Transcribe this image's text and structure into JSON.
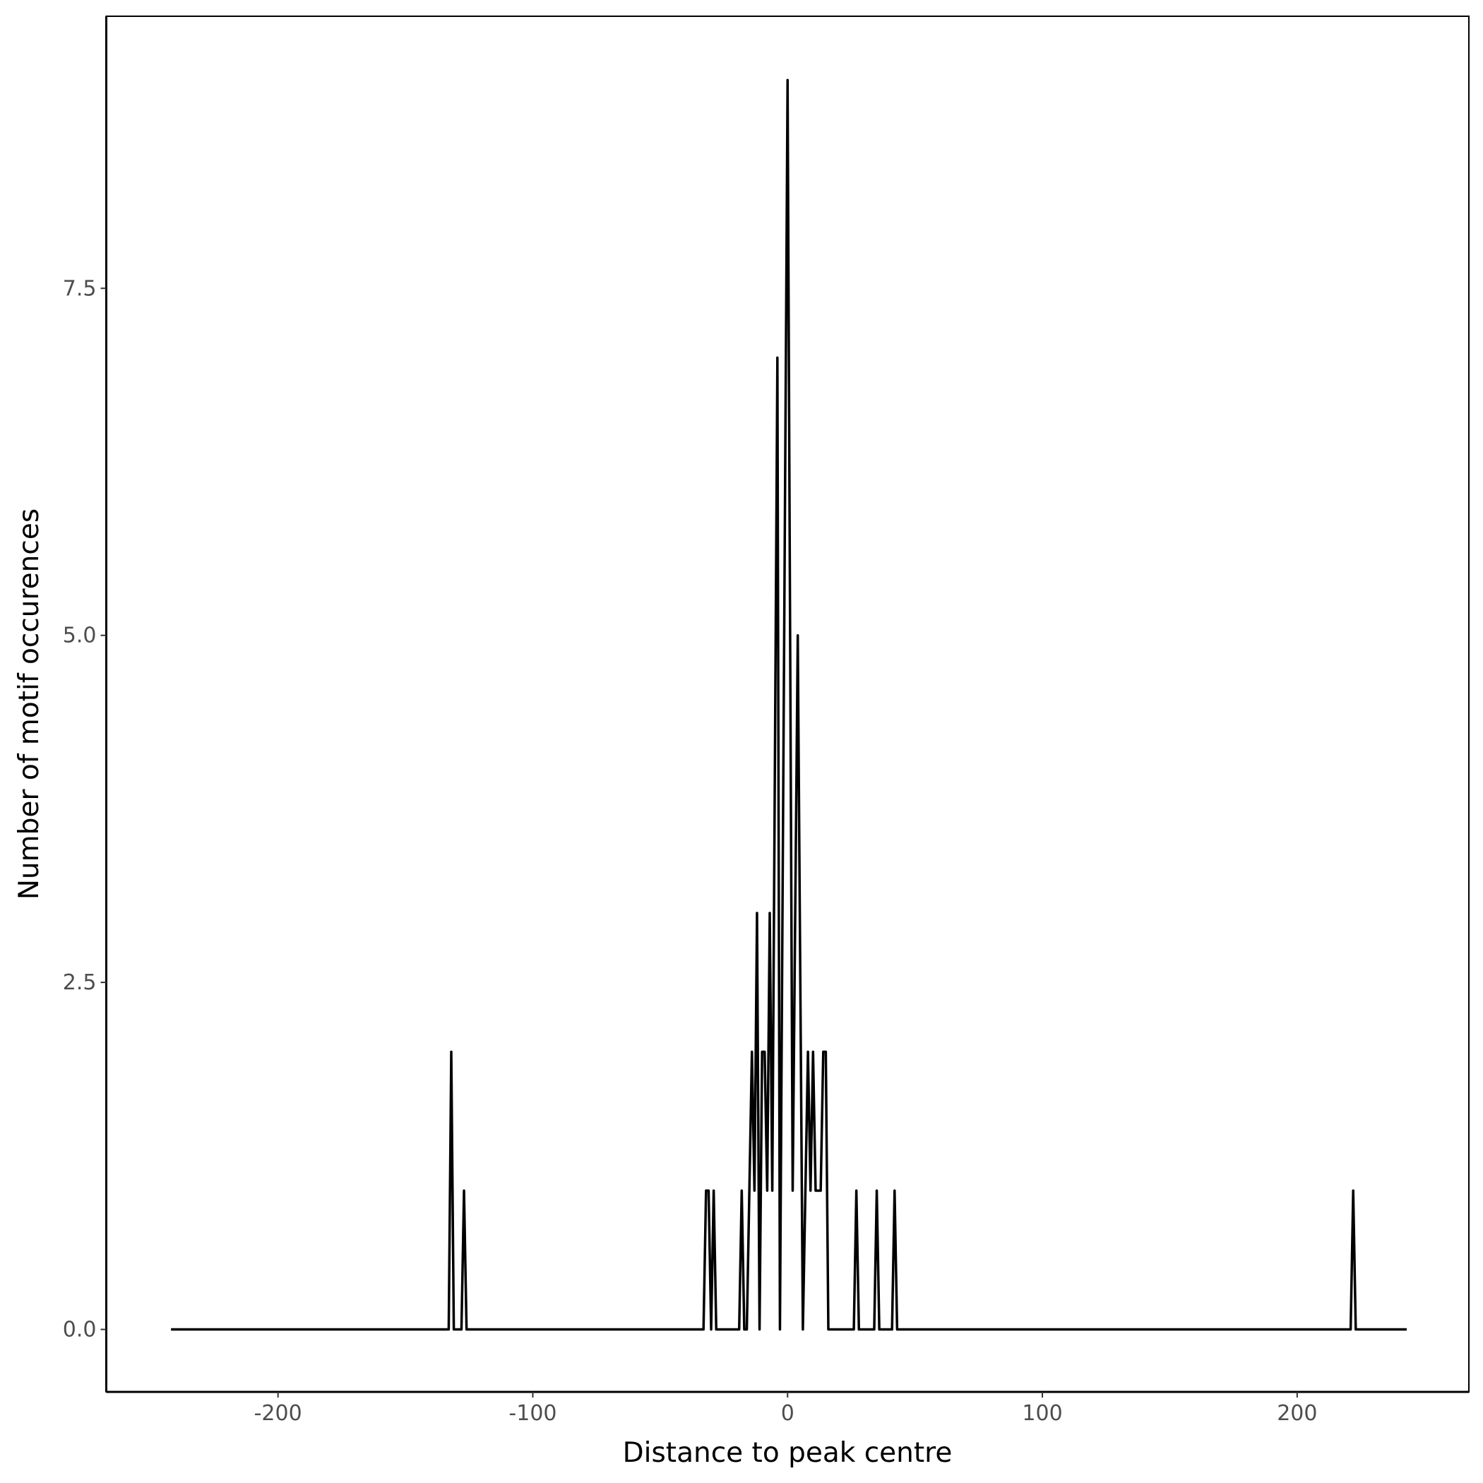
{
  "chart_data": {
    "type": "line",
    "x_label": "Distance to peak centre",
    "y_label": "Number of motif occurences",
    "color": "#000000",
    "x": [
      -242,
      -133,
      -132,
      -131,
      -128,
      -127,
      -126,
      -33,
      -32,
      -31,
      -30,
      -29,
      -28,
      -19,
      -18,
      -17,
      -16,
      -14,
      -13,
      -12,
      -11,
      -10,
      -9,
      -8,
      -7,
      -6,
      -4,
      -3,
      0,
      2,
      4,
      6,
      8,
      9,
      10,
      11,
      13,
      14,
      15,
      16,
      26,
      27,
      28,
      34,
      35,
      36,
      41,
      42,
      43,
      221,
      222,
      223,
      243
    ],
    "values": [
      0,
      0,
      2,
      0,
      0,
      1,
      0,
      0,
      1,
      1,
      0,
      1,
      0,
      0,
      1,
      0,
      0,
      2,
      1,
      3,
      0,
      2,
      2,
      1,
      3,
      1,
      7,
      0,
      9,
      1,
      5,
      0,
      2,
      1,
      2,
      1,
      1,
      2,
      2,
      0,
      0,
      1,
      0,
      0,
      1,
      0,
      0,
      1,
      0,
      0,
      1,
      0,
      0
    ],
    "xlim": [
      -267.4,
      267.4
    ],
    "ylim": [
      -0.45,
      9.46
    ],
    "xticks": [
      -200,
      -100,
      0,
      100,
      200
    ],
    "yticks": [
      {
        "value": 0,
        "label": "0.0"
      },
      {
        "value": 2.5,
        "label": "2.5"
      },
      {
        "value": 5,
        "label": "5.0"
      },
      {
        "value": 7.5,
        "label": "7.5"
      }
    ]
  }
}
